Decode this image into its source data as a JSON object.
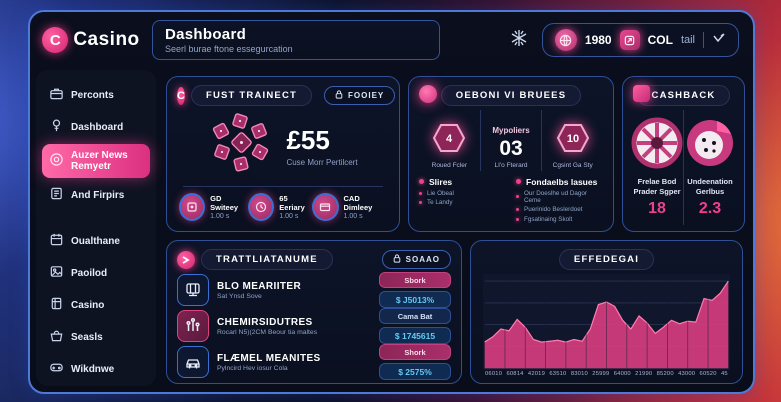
{
  "theme": {
    "accent_pink": "#e8388a",
    "border_blue": "#3b63b8",
    "value_cyan": "#62c9f2",
    "panel_bg": "#0a0e1d"
  },
  "app": {
    "logo_text": "Casino",
    "logo_letter": "C"
  },
  "header": {
    "title": "Dashboard",
    "subtitle": "Seerl burae ftone essegurcation"
  },
  "topbar": {
    "stat1_value": "1980",
    "stat2_value": "COL",
    "stat2_unit": "tail"
  },
  "sidebar": {
    "items": [
      {
        "label": "Perconts",
        "icon": "briefcase-icon"
      },
      {
        "label": "Dashboard",
        "icon": "medal-icon"
      },
      {
        "label": "Auzer News Remyetr",
        "icon": "news-icon",
        "active": true
      },
      {
        "label": "And Firpirs",
        "icon": "book-icon"
      },
      {
        "label": "Oualthane",
        "icon": "calendar-icon"
      },
      {
        "label": "Paoilod",
        "icon": "image-icon"
      },
      {
        "label": "Casino",
        "icon": "notebook-icon"
      },
      {
        "label": "Seasls",
        "icon": "basket-icon"
      },
      {
        "label": "Wikdnwe",
        "icon": "gamepad-icon"
      }
    ]
  },
  "fust": {
    "title": "FUST TRAINECT",
    "button": "FOOIEY",
    "amount": "£55",
    "amount_caption": "Cuse Morr Pertilcert",
    "stats": [
      {
        "label": "GD Switeey",
        "value": "1.00 s"
      },
      {
        "label": "65 Eeriary",
        "value": "1.00 s"
      },
      {
        "label": "CAD Dimleey",
        "value": "1.00 s"
      }
    ]
  },
  "oeboni": {
    "title": "OEBONI VI BRUEES",
    "cols": [
      {
        "value": "4",
        "label": "Roued Fcler"
      },
      {
        "heading": "Mypoliers",
        "value": "03",
        "label": "LI'o Fterard"
      },
      {
        "value": "10",
        "label": "Cgsint Ga Sty"
      }
    ],
    "lists": [
      {
        "title": "Slires",
        "items": [
          "Lie Obeal",
          "Te Landy"
        ]
      },
      {
        "title": "Fondaelbs lasues",
        "items": [
          "Our Doeslhe ud Dagor Ceme",
          "Puerinido Beslerdoet",
          "Fgsatinaing Skolt"
        ]
      }
    ]
  },
  "cashback": {
    "title": "CASHBACK",
    "cols": [
      {
        "label": "Frelae Bod Prader Sgper",
        "value": "18",
        "icon": "roulette-icon"
      },
      {
        "label": "Undeenation Gerlbus",
        "value": "2.3",
        "icon": "dice-icon"
      }
    ]
  },
  "trattl": {
    "title": "TRATTLIATANUME",
    "button": "SOAAO",
    "rows": [
      {
        "title": "BLO MEARIITER",
        "subtitle": "Sat Ynsd Sove",
        "badge": "Sbork",
        "badge_style": "pink",
        "value": "$ J5013%"
      },
      {
        "title": "CHEMIRSIDUTRES",
        "subtitle": "Rocarl N5)(2CM Beour tia maltes",
        "badge": "Cama Bat",
        "badge_style": "blue",
        "value": "$ 1745615"
      },
      {
        "title": "FLÆMEL MEANITES",
        "subtitle": "Pylncird Hev iosur Cola",
        "badge": "Shork",
        "badge_style": "pink",
        "value": "$ 2575%"
      }
    ]
  },
  "chart_data": {
    "type": "area",
    "title": "EFFEDEGAI",
    "x_ticks": [
      "06010",
      "60814",
      "42019",
      "63510",
      "83010",
      "25999",
      "64000",
      "21990",
      "85200",
      "43000",
      "60520",
      "45"
    ],
    "values": [
      30,
      36,
      45,
      43,
      56,
      47,
      33,
      30,
      31,
      32,
      30,
      33,
      31,
      45,
      73,
      76,
      71,
      55,
      45,
      60,
      52,
      40,
      47,
      55,
      51,
      54,
      53,
      80,
      78,
      86,
      100
    ],
    "ylim": [
      0,
      100
    ],
    "grid": true,
    "area_color": "#d63d7f",
    "line_color": "#ff7eb0",
    "legend": "none"
  }
}
